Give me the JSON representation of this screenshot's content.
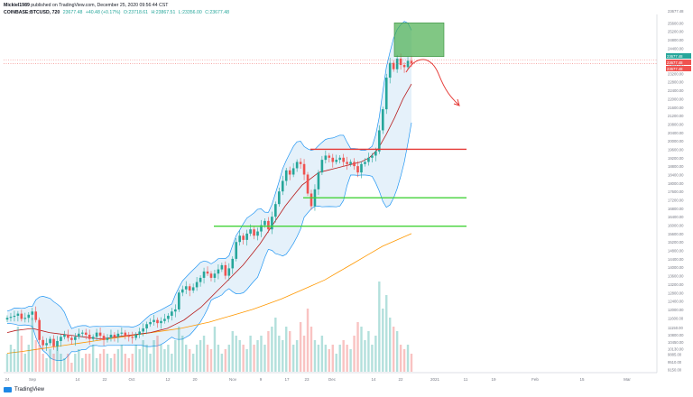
{
  "header": {
    "user": "Mickiel1989",
    "published": "published on TradingView.com, December 25, 2020 09:56:44 CST",
    "symbol": "COINBASE:BTCUSD, 720",
    "last": "23677.48",
    "change": "+40.48 (+0.17%)",
    "o": "O:23718.61",
    "h": "H:23867.51",
    "l": "L:23356.00",
    "c": "C:23677.48"
  },
  "brand": {
    "label": "TradingView",
    "icon": "tradingview-logo-icon"
  },
  "chart_data": {
    "type": "candlestick",
    "symbol": "COINBASE:BTCUSD",
    "interval": "720",
    "x_ticks": [
      "24",
      "Sep",
      "14",
      "22",
      "Oct",
      "12",
      "20",
      "Nov",
      "9",
      "17",
      "23",
      "Dec",
      "14",
      "22",
      "2021",
      "11",
      "19",
      "Feb",
      "15",
      "Mar"
    ],
    "y_ticks": [
      9150,
      9510,
      9885,
      10130,
      10450,
      10800,
      11150,
      11600,
      12000,
      12400,
      12800,
      13200,
      13600,
      14000,
      14400,
      14800,
      15200,
      15600,
      16000,
      16400,
      16800,
      17200,
      17600,
      18000,
      18400,
      18800,
      19200,
      19600,
      20000,
      20400,
      20800,
      21200,
      21600,
      22000,
      22400,
      22800,
      23200,
      23600,
      24000,
      24400,
      24800,
      25200,
      25600
    ],
    "y_top_label": "23677.48",
    "ylim": [
      9000,
      26000
    ],
    "last_price": 23677.48,
    "price_labels": [
      {
        "text": "23677.48",
        "color": "#26a69a"
      },
      {
        "text": "23677.48",
        "color": "#ef5350"
      },
      {
        "text": "23677.48",
        "color": "#ef5350"
      }
    ],
    "close_path": [
      11600,
      11650,
      11700,
      11800,
      11550,
      11600,
      11750,
      11900,
      11500,
      10550,
      10300,
      10400,
      10600,
      10250,
      10500,
      10700,
      10800,
      10650,
      10550,
      10700,
      10850,
      10900,
      10800,
      10600,
      10700,
      10900,
      10750,
      10550,
      10650,
      10800,
      10700,
      10850,
      10900,
      10750,
      10700,
      10650,
      10800,
      10950,
      11100,
      11300,
      11400,
      11500,
      11350,
      11450,
      11550,
      11700,
      11900,
      12000,
      12800,
      12950,
      13100,
      12900,
      13050,
      13300,
      13500,
      13800,
      13700,
      13500,
      13700,
      13900,
      14100,
      13600,
      13950,
      14400,
      15200,
      15500,
      15300,
      15600,
      15800,
      15500,
      15700,
      16000,
      16200,
      15800,
      16400,
      17000,
      17600,
      18100,
      18600,
      18400,
      18700,
      19000,
      18900,
      18400,
      17500,
      16900,
      17700,
      18500,
      19100,
      19300,
      19200,
      19000,
      19100,
      19200,
      19000,
      18900,
      19000,
      18800,
      18500,
      18900,
      19000,
      19200,
      19300,
      19500,
      20500,
      21500,
      23000,
      23700,
      23400,
      23900,
      23600,
      23500,
      23800,
      23677
    ],
    "sma_path": [
      10900,
      11000,
      11050,
      11100,
      11000,
      10900,
      10850,
      10800,
      10750,
      10700,
      10650,
      10600,
      10650,
      10700,
      10750,
      10800,
      10850,
      10900,
      11000,
      11100,
      11300,
      11500,
      11800,
      12100,
      12500,
      12900,
      13300,
      13700,
      14100,
      14600,
      15100,
      15700,
      16300,
      16900,
      17400,
      17900,
      18200,
      18500,
      18600,
      18700,
      18800,
      18900,
      19000,
      19200,
      19600,
      20300,
      21100,
      22000,
      22700
    ],
    "ma_long_path": [
      9920,
      10000,
      10100,
      10200,
      10300,
      10400,
      10500,
      10600,
      10700,
      10800,
      10900,
      11000,
      11100,
      11250,
      11400,
      11600,
      11800,
      12000,
      12250,
      12500,
      12800,
      13100,
      13400,
      13800,
      14200,
      14600,
      15000,
      15300,
      15600
    ],
    "volume_relative": [
      0.2,
      0.3,
      0.25,
      0.5,
      0.4,
      0.2,
      0.3,
      0.6,
      0.35,
      0.3,
      0.2,
      0.15,
      0.25,
      0.2,
      0.3,
      0.2,
      0.15,
      0.2,
      0.1,
      0.2,
      0.25,
      0.15,
      0.2,
      0.2,
      0.3,
      0.15,
      0.2,
      0.25,
      0.2,
      0.15,
      0.2,
      0.25,
      0.3,
      0.2,
      0.15,
      0.2,
      0.3,
      0.25,
      0.35,
      0.3,
      0.2,
      0.35,
      0.4,
      0.3,
      0.25,
      0.3,
      0.2,
      0.35,
      0.5,
      0.4,
      0.3,
      0.25,
      0.2,
      0.3,
      0.35,
      0.4,
      0.3,
      0.25,
      0.5,
      0.3,
      0.2,
      0.25,
      0.3,
      0.45,
      0.4,
      0.35,
      0.3,
      0.25,
      0.4,
      0.3,
      0.35,
      0.4,
      0.3,
      0.45,
      0.5,
      0.6,
      0.4,
      0.35,
      0.5,
      0.45,
      0.3,
      0.35,
      0.55,
      0.4,
      0.7,
      0.5,
      0.35,
      0.3,
      0.4,
      0.3,
      0.25,
      0.3,
      0.2,
      0.3,
      0.35,
      0.3,
      0.25,
      0.4,
      0.55,
      0.5,
      0.35,
      0.45,
      0.3,
      0.4,
      1.0,
      0.7,
      0.85,
      0.6,
      0.5,
      0.45,
      0.3,
      0.25,
      0.3,
      0.2
    ],
    "levels": [
      {
        "price": 19600,
        "color": "#e53935",
        "from": "Nov 23",
        "to": "Jan 11"
      },
      {
        "price": 17300,
        "color": "#43d339",
        "from": "Nov 25",
        "to": "Jan 11"
      },
      {
        "price": 15950,
        "color": "#43d339",
        "from": "Oct 28",
        "to": "Jan 11"
      }
    ],
    "target_box": {
      "price_low": 24000,
      "price_high": 25600,
      "from": "Dec 21",
      "to": "Dec 29",
      "color": "#4caf50"
    },
    "projection_arrow": {
      "color": "#e53935",
      "direction": "down"
    },
    "colors": {
      "up": "#26a69a",
      "down": "#ef5350",
      "bb": "#2196f3",
      "bb_fill": "#cfe6f5",
      "sma": "#b71c1c",
      "ma_long": "#ff9800"
    }
  }
}
